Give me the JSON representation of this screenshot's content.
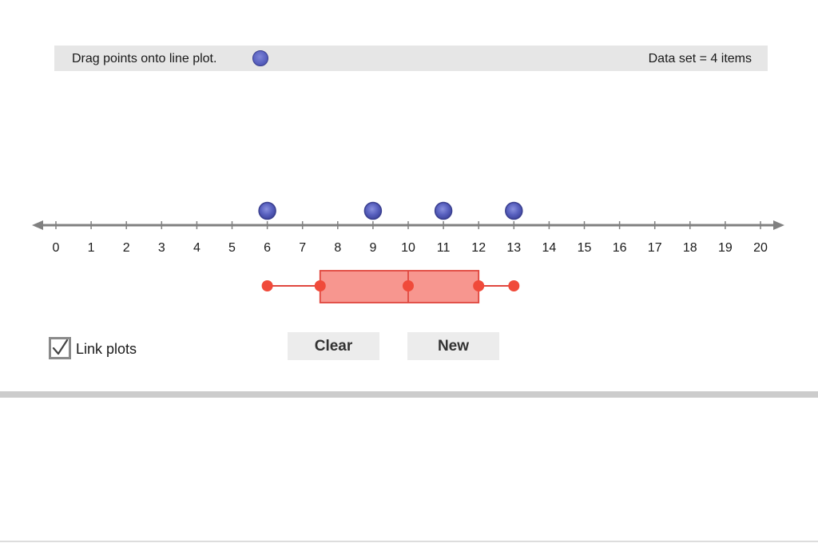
{
  "header": {
    "instruction": "Drag points onto line plot.",
    "dataset_label": "Data set = 4 items"
  },
  "number_line": {
    "min": 0,
    "max": 20,
    "tick_labels": [
      "0",
      "1",
      "2",
      "3",
      "4",
      "5",
      "6",
      "7",
      "8",
      "9",
      "10",
      "11",
      "12",
      "13",
      "14",
      "15",
      "16",
      "17",
      "18",
      "19",
      "20"
    ]
  },
  "points": [
    6,
    9,
    11,
    13
  ],
  "box_plot": {
    "min": 6,
    "q1": 7.5,
    "median": 10,
    "q3": 12,
    "max": 13
  },
  "controls": {
    "link_plots_label": "Link plots",
    "link_plots_checked": true,
    "clear_label": "Clear",
    "new_label": "New"
  },
  "colors": {
    "point_fill": "#5a62c0",
    "point_stroke": "#3a3f8f",
    "axis": "#808080",
    "box_fill": "#f7968f",
    "box_stroke": "#e0473e",
    "whisker": "#e0473e",
    "whisker_dot": "#f04a3a"
  }
}
